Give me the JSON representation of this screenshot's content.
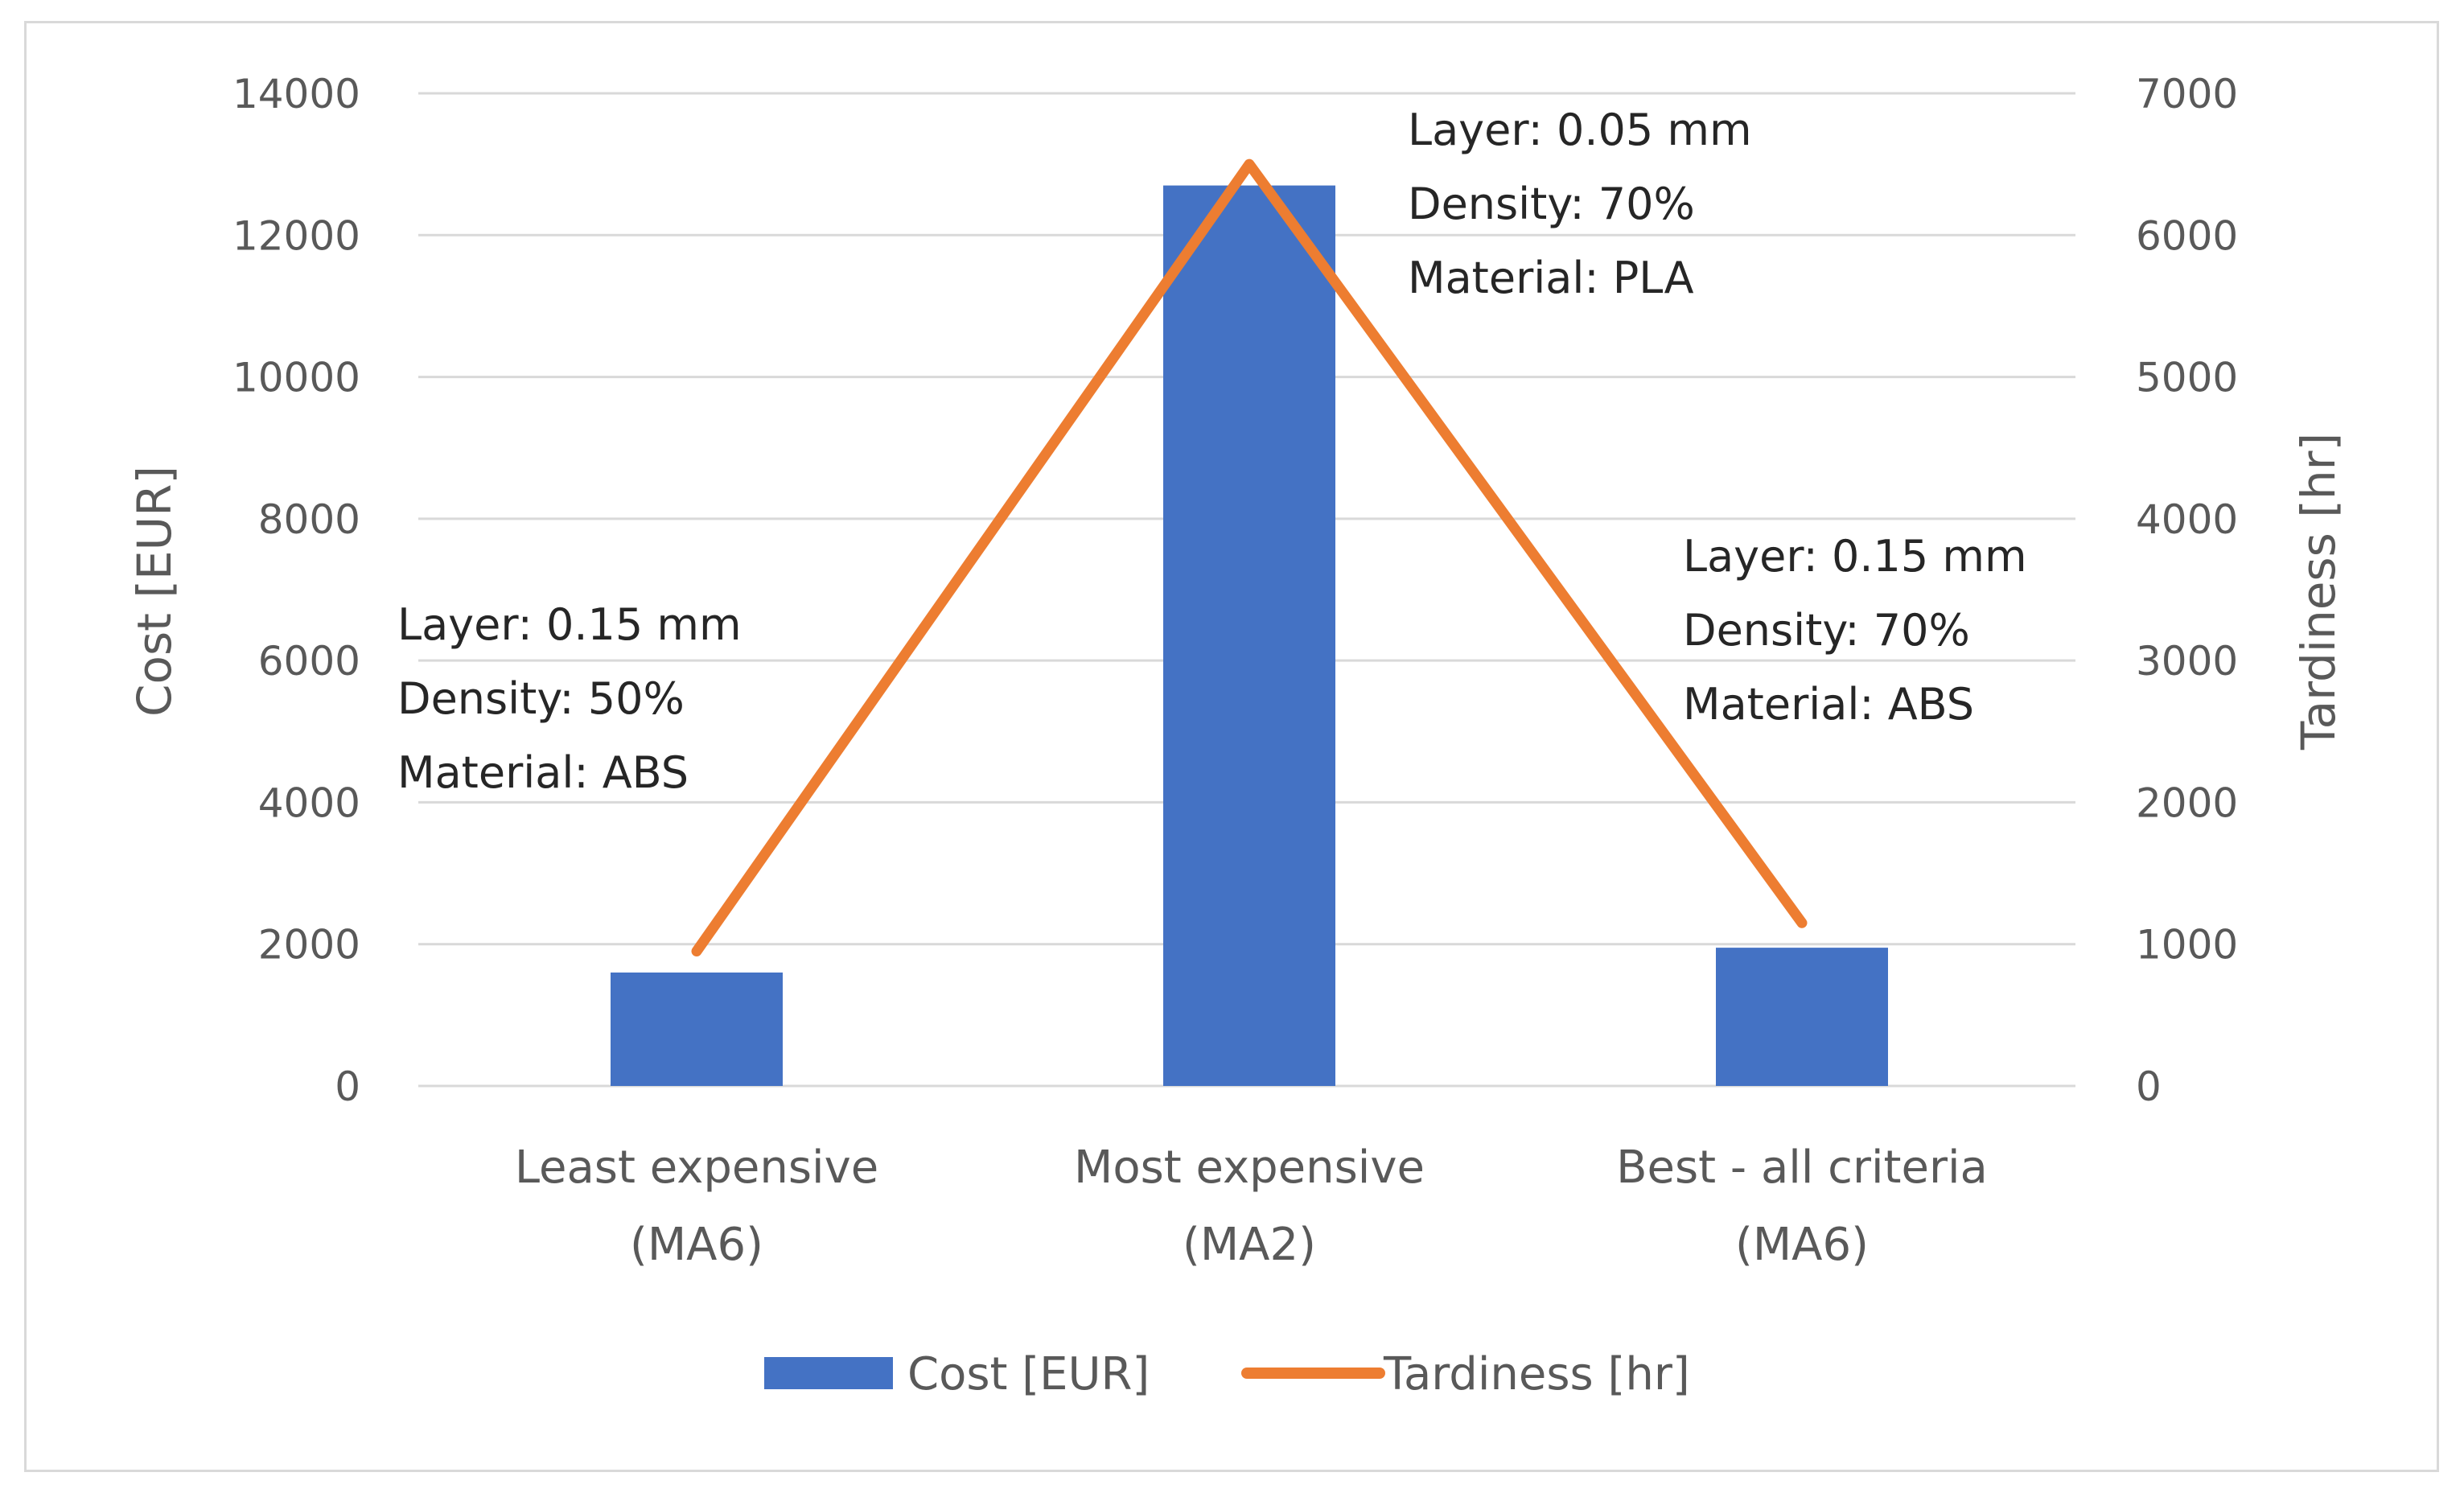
{
  "chart_data": {
    "type": "bar",
    "categories": [
      [
        "Least expensive",
        "(MA6)"
      ],
      [
        "Most expensive",
        "(MA2)"
      ],
      [
        "Best - all criteria",
        "(MA6)"
      ]
    ],
    "series": [
      {
        "name": "Cost [EUR]",
        "type": "bar",
        "axis": "left",
        "color": "#4472C4",
        "values": [
          1600,
          12700,
          1950
        ]
      },
      {
        "name": "Tardiness [hr]",
        "type": "line",
        "axis": "right",
        "color": "#ED7D31",
        "values": [
          950,
          6500,
          1150
        ]
      }
    ],
    "y_left": {
      "label": "Cost [EUR]",
      "lim": [
        0,
        14000
      ],
      "ticks": [
        "0",
        "2000",
        "4000",
        "6000",
        "8000",
        "10000",
        "12000",
        "14000"
      ]
    },
    "y_right": {
      "label": "Tardiness [hr]",
      "lim": [
        0,
        7000
      ],
      "ticks": [
        "0",
        "1000",
        "2000",
        "3000",
        "4000",
        "5000",
        "6000",
        "7000"
      ]
    },
    "grid": true,
    "legend_position": "bottom",
    "annotations": [
      {
        "category_index": 0,
        "lines": [
          "Layer: 0.15 mm",
          "Density: 50%",
          "Material: ABS"
        ]
      },
      {
        "category_index": 1,
        "lines": [
          "Layer: 0.05 mm",
          "Density: 70%",
          "Material: PLA"
        ]
      },
      {
        "category_index": 2,
        "lines": [
          "Layer: 0.15 mm",
          "Density: 70%",
          "Material: ABS"
        ]
      }
    ]
  }
}
